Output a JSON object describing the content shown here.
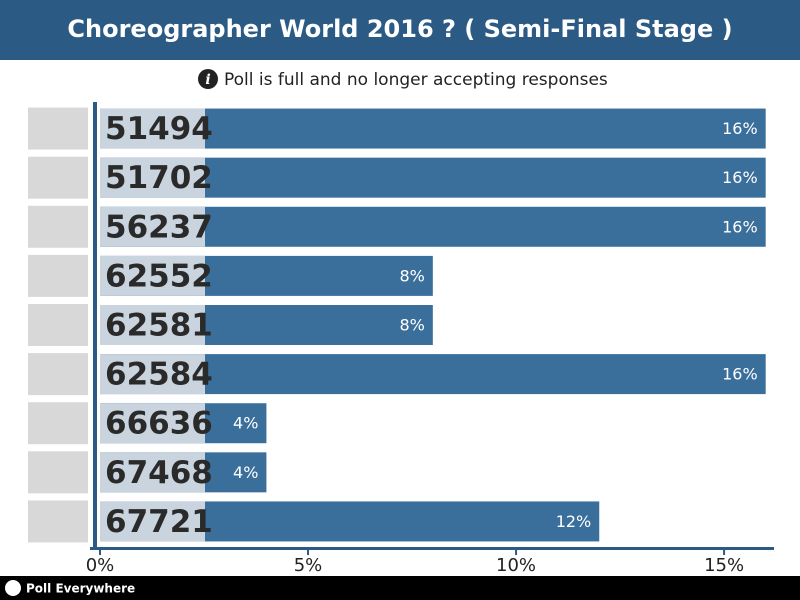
{
  "chart_data": {
    "type": "bar",
    "orientation": "horizontal",
    "title": "Choreographer World 2016 ? ( Semi-Final Stage )",
    "subtitle": "Poll is full and no longer accepting responses",
    "categories": [
      "51494",
      "51702",
      "56237",
      "62552",
      "62581",
      "62584",
      "66636",
      "67468",
      "67721"
    ],
    "values": [
      16,
      16,
      16,
      8,
      8,
      16,
      4,
      4,
      12
    ],
    "value_labels": [
      "16%",
      "16%",
      "16%",
      "8%",
      "8%",
      "16%",
      "4%",
      "4%",
      "12%"
    ],
    "color": "#3a6f9c",
    "xlim": [
      0,
      16.2
    ],
    "xticks": [
      {
        "value": 0,
        "label": "0%"
      },
      {
        "value": 5,
        "label": "5%"
      },
      {
        "value": 10,
        "label": "10%"
      },
      {
        "value": 15,
        "label": "15%"
      }
    ]
  },
  "footer": {
    "brand": "Poll Everywhere"
  }
}
